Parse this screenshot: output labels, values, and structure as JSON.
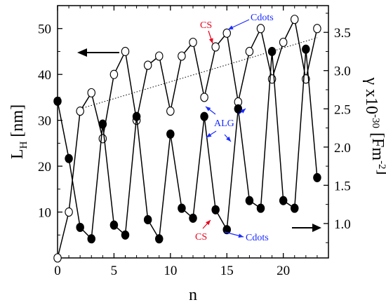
{
  "chart_data": {
    "type": "scatter",
    "xlabel": "n",
    "ylabel_left": "L_H [nm]",
    "ylabel_right": "γ x10^-30 [Fm^-2]",
    "xlim": [
      0,
      24
    ],
    "ylim_left": [
      0,
      55
    ],
    "ylim_right": [
      0.55,
      3.85
    ],
    "x_ticks": [
      0,
      5,
      10,
      15,
      20
    ],
    "y_left_ticks": [
      10,
      20,
      30,
      40,
      50
    ],
    "y_right_ticks": [
      1.0,
      1.5,
      2.0,
      2.5,
      3.0,
      3.5
    ],
    "grid": false,
    "series": [
      {
        "axis": "left",
        "marker": "open-circle",
        "x": [
          0,
          1,
          2,
          3,
          4,
          5,
          6,
          7,
          8,
          9,
          10,
          11,
          12,
          13,
          14,
          15,
          16,
          17,
          18,
          19,
          20,
          21,
          22,
          23
        ],
        "values": [
          0,
          10,
          32,
          36,
          26,
          40,
          45,
          30,
          42,
          44,
          32,
          44,
          47,
          35,
          46,
          49,
          34,
          45,
          50,
          39,
          47,
          52,
          39,
          50
        ]
      },
      {
        "axis": "right",
        "marker": "filled-circle",
        "x": [
          0,
          1,
          2,
          3,
          4,
          5,
          6,
          7,
          8,
          9,
          10,
          11,
          12,
          13,
          14,
          15,
          16,
          17,
          18,
          19,
          20,
          21,
          22,
          23
        ],
        "values": [
          2.6,
          1.85,
          0.95,
          0.8,
          2.3,
          0.98,
          0.85,
          2.4,
          1.05,
          0.8,
          2.17,
          1.2,
          1.07,
          2.4,
          1.18,
          0.92,
          2.5,
          1.3,
          1.2,
          3.25,
          1.3,
          1.2,
          3.28,
          1.6
        ]
      }
    ],
    "trend_line": {
      "axis": "left",
      "x": [
        2,
        23
      ],
      "values": [
        32.5,
        48
      ]
    },
    "annotations": {
      "top_cs": "CS",
      "top_cdots": "Cdots",
      "middle_alg": "ALG",
      "bottom_cs": "CS",
      "bottom_cdots": "Cdots"
    },
    "colors": {
      "cs": "#e8001c",
      "cdots": "#1a2bff",
      "alg": "#1a2bff",
      "data": "#000000"
    }
  }
}
